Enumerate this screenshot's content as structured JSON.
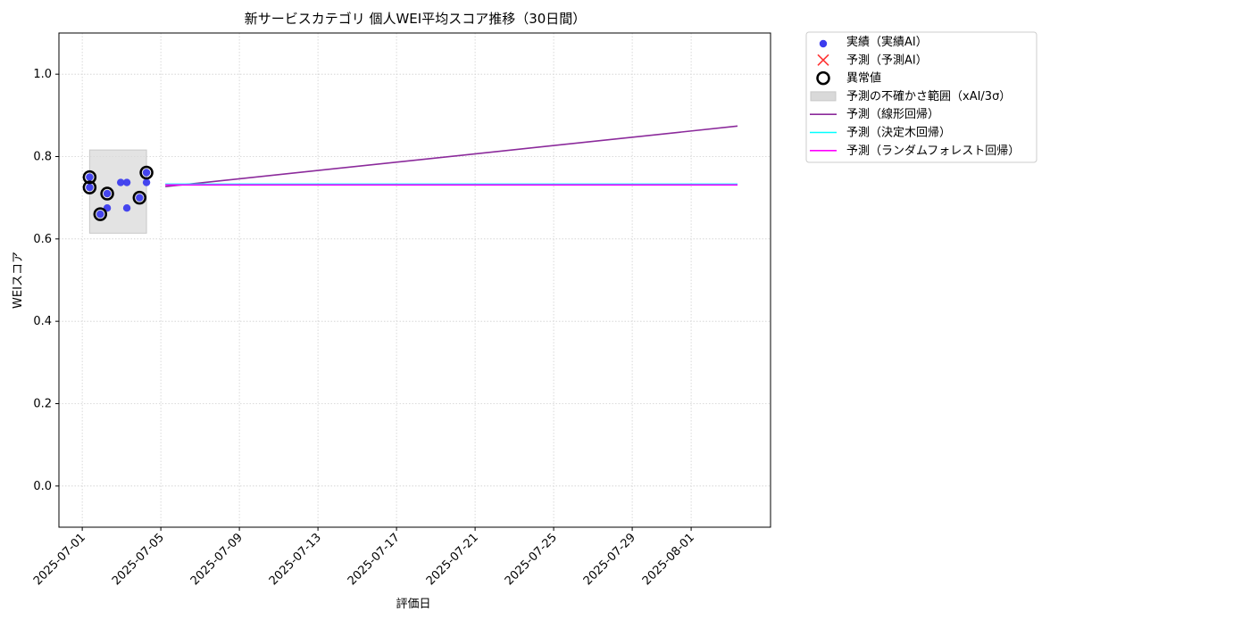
{
  "chart_data": {
    "type": "combo",
    "title": "新サービスカテゴリ 個人WEI平均スコア推移（30日間）",
    "x_label": "評価日",
    "y_label": "WEIスコア",
    "xlim": [
      "2025-06-29 19:30",
      "2025-08-05 01:00"
    ],
    "xticks": [
      "2025-07-01",
      "2025-07-05",
      "2025-07-09",
      "2025-07-13",
      "2025-07-17",
      "2025-07-21",
      "2025-07-25",
      "2025-07-29",
      "2025-08-01"
    ],
    "ylim": [
      -0.1,
      1.1
    ],
    "yticks": [
      {
        "value": 0,
        "label": "0.0"
      },
      0.2,
      0.4,
      0.6,
      0.8,
      {
        "value": 1,
        "label": "1.0"
      }
    ],
    "grid": true,
    "legend": "outside upper right",
    "series": [
      {
        "name": "実績（実績AI）",
        "kind": "scatter",
        "marker": "dot",
        "color": "#3c3cee",
        "x": [
          "2025-07-01 09:00",
          "2025-07-01 09:00",
          "2025-07-01 22:00",
          "2025-07-02 06:30",
          "2025-07-02 06:30",
          "2025-07-02 23:00",
          "2025-07-03 06:30",
          "2025-07-03 06:30",
          "2025-07-03 22:00",
          "2025-07-04 06:30",
          "2025-07-04 06:30"
        ],
        "values": [
          0.75,
          0.725,
          0.66,
          0.675,
          0.71,
          0.737,
          0.737,
          0.675,
          0.7,
          0.761,
          0.737
        ]
      },
      {
        "name": "予測（予測AI）",
        "kind": "scatter",
        "marker": "x",
        "color": "#ff3333",
        "x": [],
        "values": []
      },
      {
        "name": "異常値",
        "kind": "scatter",
        "marker": "ring",
        "color": "#000000",
        "x": [
          "2025-07-01 09:00",
          "2025-07-01 09:00",
          "2025-07-01 22:00",
          "2025-07-02 06:30",
          "2025-07-03 22:00",
          "2025-07-04 06:30"
        ],
        "values": [
          0.75,
          0.725,
          0.66,
          0.71,
          0.7,
          0.761
        ]
      },
      {
        "name": "予測の不確かさ範囲（xAI/3σ）",
        "kind": "band",
        "color": "#d9d9d9",
        "x": [
          "2025-07-01 09:00",
          "2025-07-04 06:30"
        ],
        "lower": [
          0.614,
          0.614
        ],
        "upper": [
          0.816,
          0.816
        ]
      },
      {
        "name": "予測（線形回帰）",
        "kind": "line",
        "color": "#8b2a9b",
        "x": [
          "2025-07-05 05:30",
          "2025-08-03 08:40"
        ],
        "values": [
          0.727,
          0.874
        ]
      },
      {
        "name": "予測（決定木回帰）",
        "kind": "line",
        "color": "#00ffff",
        "x": [
          "2025-07-05 05:30",
          "2025-08-03 08:40"
        ],
        "values": [
          0.733,
          0.733
        ]
      },
      {
        "name": "予測（ランダムフォレスト回帰）",
        "kind": "line",
        "color": "#ff00ff",
        "x": [
          "2025-07-05 05:30",
          "2025-08-03 08:40"
        ],
        "values": [
          0.731,
          0.731
        ]
      }
    ]
  }
}
